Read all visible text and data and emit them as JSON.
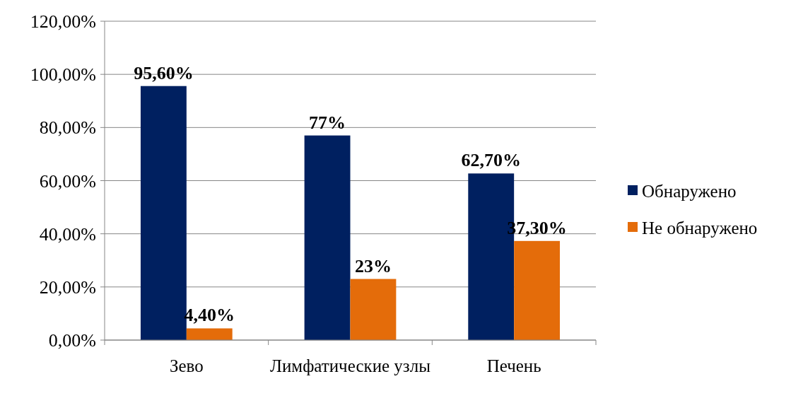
{
  "chart_data": {
    "type": "bar",
    "categories": [
      "Зево",
      "Лимфатические узлы",
      "Печень"
    ],
    "series": [
      {
        "name": "Обнаружено",
        "color": "#002060",
        "values": [
          95.6,
          77,
          62.7
        ],
        "value_labels": [
          "95,60%",
          "77%",
          "62,70%"
        ]
      },
      {
        "name": "Не обнаружено",
        "color": "#e46c0a",
        "values": [
          4.4,
          23,
          37.3
        ],
        "value_labels": [
          "4,40%",
          "23%",
          "37,30%"
        ]
      }
    ],
    "ylim": [
      0,
      120
    ],
    "yticks": [
      {
        "value": 0,
        "label": "0,00%"
      },
      {
        "value": 20,
        "label": "20,00%"
      },
      {
        "value": 40,
        "label": "40,00%"
      },
      {
        "value": 60,
        "label": "60,00%"
      },
      {
        "value": 80,
        "label": "80,00%"
      },
      {
        "value": 100,
        "label": "100,00%"
      },
      {
        "value": 120,
        "label": "120,00%"
      }
    ],
    "grid": "y",
    "legend": "right"
  }
}
